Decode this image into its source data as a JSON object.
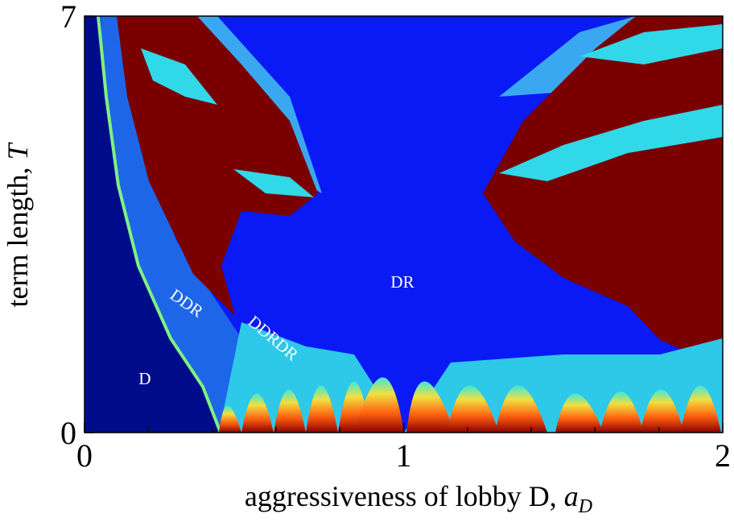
{
  "chart_data": {
    "type": "phase-map",
    "xlabel": "aggressiveness of lobby D,",
    "xlabel_symbol": "a",
    "xlabel_subscript": "D",
    "ylabel": "term length,",
    "ylabel_symbol": "T",
    "xlim": [
      0,
      2
    ],
    "xticks": [
      0,
      1,
      2
    ],
    "xminor_ticks": [
      0.2,
      0.4,
      0.6,
      0.8,
      1.2,
      1.4,
      1.6,
      1.8
    ],
    "ylim": [
      0,
      7
    ],
    "yticks": [
      0,
      7
    ],
    "annotations": [
      "D",
      "DDR",
      "DDRDR",
      "DR"
    ]
  }
}
